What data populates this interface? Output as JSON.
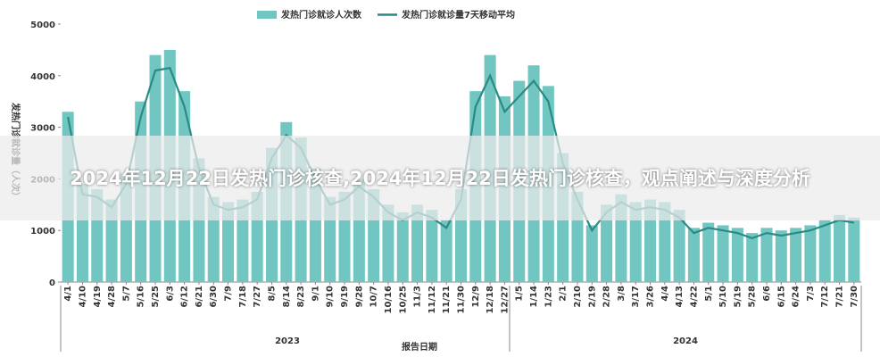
{
  "chart_data": {
    "type": "bar",
    "page_title": "2024年12月22日发热门诊核查,2024年12月22日发热门诊核查，观点阐述与深度分析",
    "y_label": "发热门诊就诊量（人次）",
    "x_label": "报告日期",
    "years": [
      "2023",
      "2024"
    ],
    "categories": [
      "4/1",
      "4/10",
      "4/19",
      "4/28",
      "5/7",
      "5/16",
      "5/25",
      "6/3",
      "6/12",
      "6/21",
      "6/30",
      "7/9",
      "7/18",
      "7/27",
      "8/5",
      "8/14",
      "8/23",
      "9/1",
      "9/10",
      "9/19",
      "9/28",
      "10/7",
      "10/16",
      "10/25",
      "11/3",
      "11/12",
      "11/21",
      "11/30",
      "12/9",
      "12/18",
      "12/27",
      "1/5",
      "1/14",
      "1/23",
      "2/1",
      "2/10",
      "2/19",
      "2/28",
      "3/8",
      "3/17",
      "3/26",
      "4/4",
      "4/13",
      "4/22",
      "5/1",
      "5/10",
      "5/19",
      "5/28",
      "6/6",
      "6/15",
      "6/24",
      "7/3",
      "7/12",
      "7/21",
      "7/30"
    ],
    "series": [
      {
        "name": "发热门诊就诊人次数",
        "color": "#72c6c2",
        "type": "bar",
        "values": [
          3300,
          1900,
          1800,
          1600,
          2100,
          3500,
          4400,
          4500,
          3700,
          2400,
          1650,
          1550,
          1600,
          1750,
          2600,
          3100,
          2800,
          2200,
          1650,
          1750,
          2000,
          1800,
          1500,
          1350,
          1500,
          1400,
          1200,
          1800,
          3700,
          4400,
          3600,
          3900,
          4200,
          3800,
          2500,
          1750,
          1100,
          1500,
          1700,
          1550,
          1600,
          1550,
          1400,
          1050,
          1150,
          1100,
          1050,
          950,
          1050,
          1000,
          1050,
          1100,
          1200,
          1300,
          1250
        ]
      },
      {
        "name": "发热门诊就诊量7天移动平均",
        "color": "#2a8a84",
        "type": "line",
        "values": [
          3200,
          1700,
          1650,
          1450,
          1900,
          3200,
          4100,
          4150,
          3400,
          2200,
          1500,
          1400,
          1450,
          1600,
          2400,
          2850,
          2600,
          2000,
          1500,
          1600,
          1850,
          1650,
          1350,
          1200,
          1350,
          1250,
          1050,
          1600,
          3400,
          4000,
          3300,
          3600,
          3900,
          3500,
          2300,
          1600,
          1000,
          1350,
          1550,
          1400,
          1450,
          1400,
          1250,
          950,
          1050,
          1000,
          950,
          850,
          950,
          900,
          950,
          1000,
          1100,
          1200,
          1150
        ]
      }
    ],
    "ylim": [
      0,
      5000
    ],
    "yticks": [
      0,
      1000,
      2000,
      3000,
      4000,
      5000
    ],
    "grid": false
  }
}
